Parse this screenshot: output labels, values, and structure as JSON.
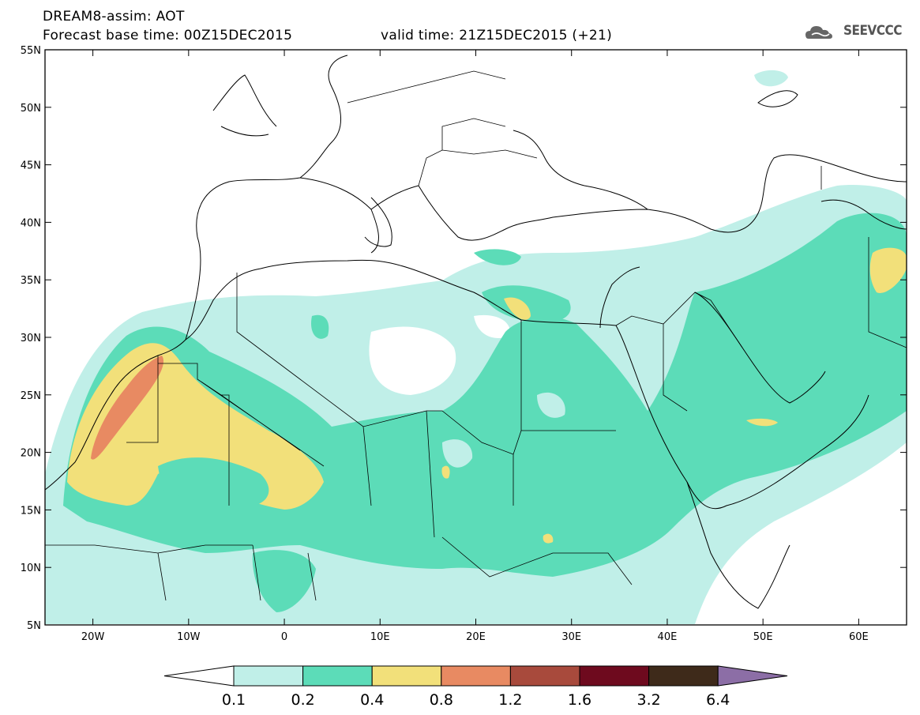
{
  "header": {
    "line1": "DREAM8-assim: AOT",
    "line2": "Forecast base time: 00Z15DEC2015",
    "line3": "valid time: 21Z15DEC2015 (+21)",
    "logo": "SEEVCCC"
  },
  "map": {
    "lon_range": [
      -25,
      65
    ],
    "lat_range": [
      5,
      55
    ],
    "x_ticks": [
      "20W",
      "10W",
      "0",
      "10E",
      "20E",
      "30E",
      "40E",
      "50E",
      "60E"
    ],
    "y_ticks": [
      "55N",
      "50N",
      "45N",
      "40N",
      "35N",
      "30N",
      "25N",
      "20N",
      "15N",
      "10N",
      "5N"
    ],
    "field": "AOT",
    "features": [
      "coastlines",
      "country borders"
    ]
  },
  "colorbar": {
    "labels": [
      "0.1",
      "0.2",
      "0.4",
      "0.8",
      "1.2",
      "1.6",
      "3.2",
      "6.4"
    ],
    "colors": {
      "low": "#ffffff",
      "c1": "#c0efe8",
      "c2": "#5cdcb8",
      "c3": "#f2e07a",
      "c4": "#e88a62",
      "c5": "#a84a3c",
      "c6": "#6e0a1e",
      "c7": "#3e2a1a",
      "high": "#8c6ea6"
    }
  },
  "icons": {
    "logo": "cloud-icon"
  }
}
